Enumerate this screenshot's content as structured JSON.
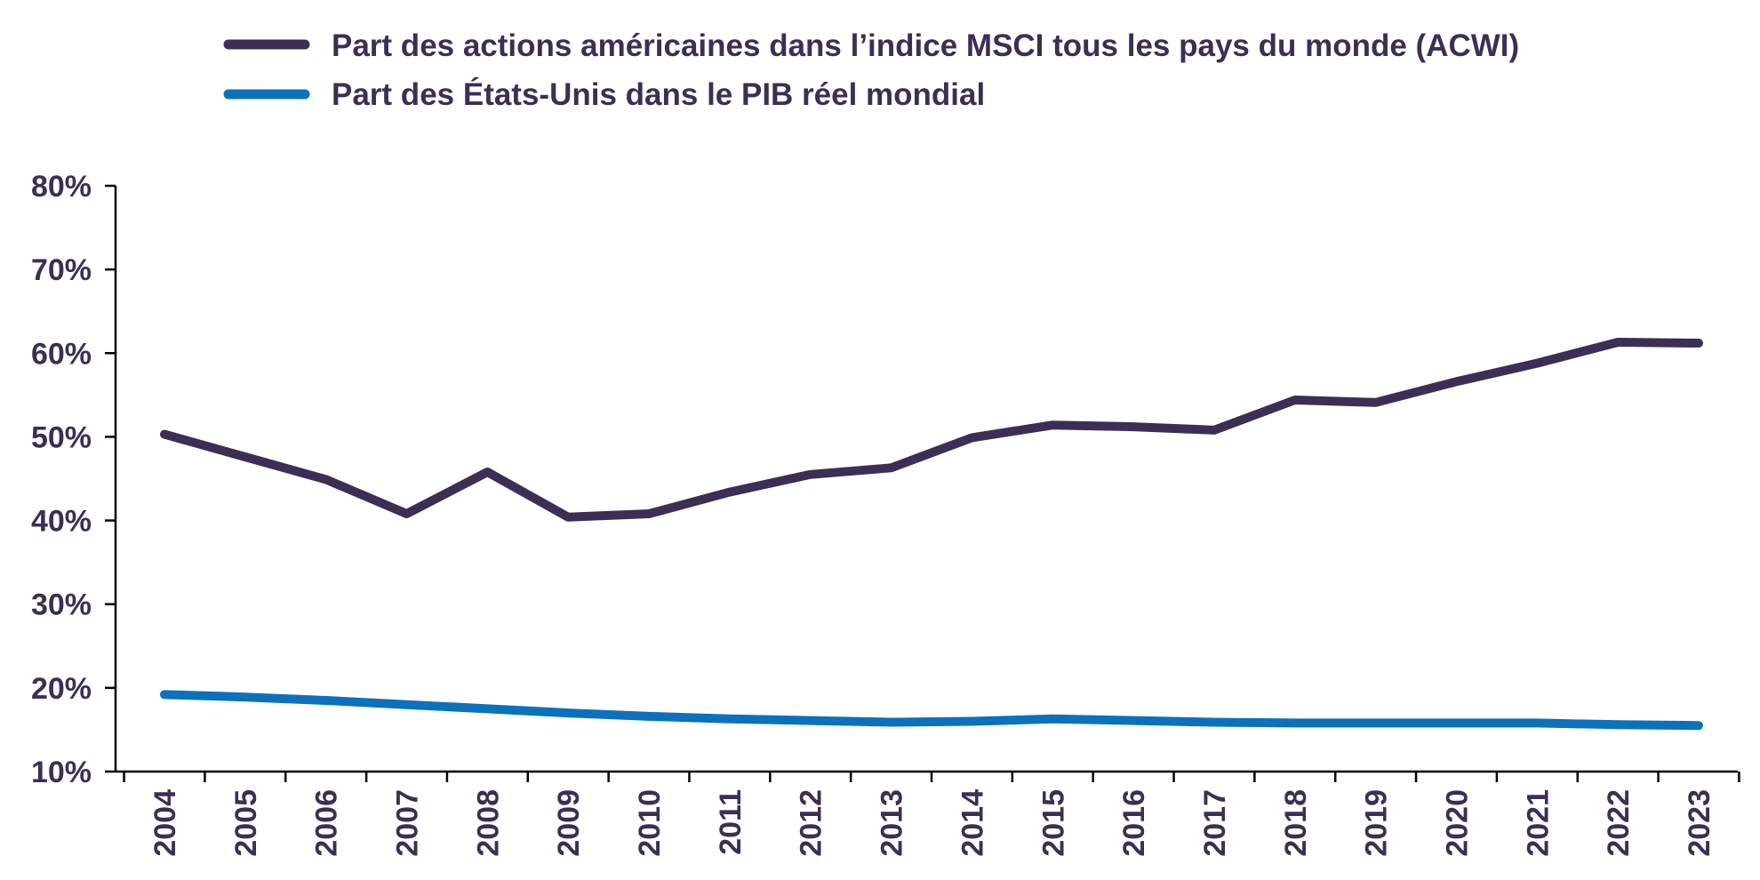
{
  "chart_data": {
    "type": "line",
    "title": "",
    "xlabel": "",
    "ylabel": "",
    "categories": [
      "2004",
      "2005",
      "2006",
      "2007",
      "2008",
      "2009",
      "2010",
      "2011",
      "2012",
      "2013",
      "2014",
      "2015",
      "2016",
      "2017",
      "2018",
      "2019",
      "2020",
      "2021",
      "2022",
      "2023"
    ],
    "y_ticks": [
      "10%",
      "20%",
      "30%",
      "40%",
      "50%",
      "60%",
      "70%",
      "80%"
    ],
    "ylim": [
      10,
      80
    ],
    "grid": false,
    "legend_position": "top",
    "series": [
      {
        "name": "Part des actions américaines dans l’indice MSCI tous les pays du monde (ACWI)",
        "color": "#3b2f55",
        "values": [
          50.3,
          47.6,
          44.9,
          40.8,
          45.8,
          40.4,
          40.8,
          43.4,
          45.5,
          46.3,
          49.9,
          51.4,
          51.2,
          50.8,
          54.4,
          54.1,
          56.6,
          58.8,
          61.3,
          61.2
        ]
      },
      {
        "name": "Part des États-Unis dans le PIB réel mondial",
        "color": "#0b71bc",
        "values": [
          19.2,
          18.9,
          18.5,
          18.0,
          17.5,
          17.0,
          16.6,
          16.3,
          16.1,
          15.9,
          16.0,
          16.3,
          16.1,
          15.9,
          15.8,
          15.8,
          15.8,
          15.8,
          15.6,
          15.5
        ]
      }
    ]
  }
}
